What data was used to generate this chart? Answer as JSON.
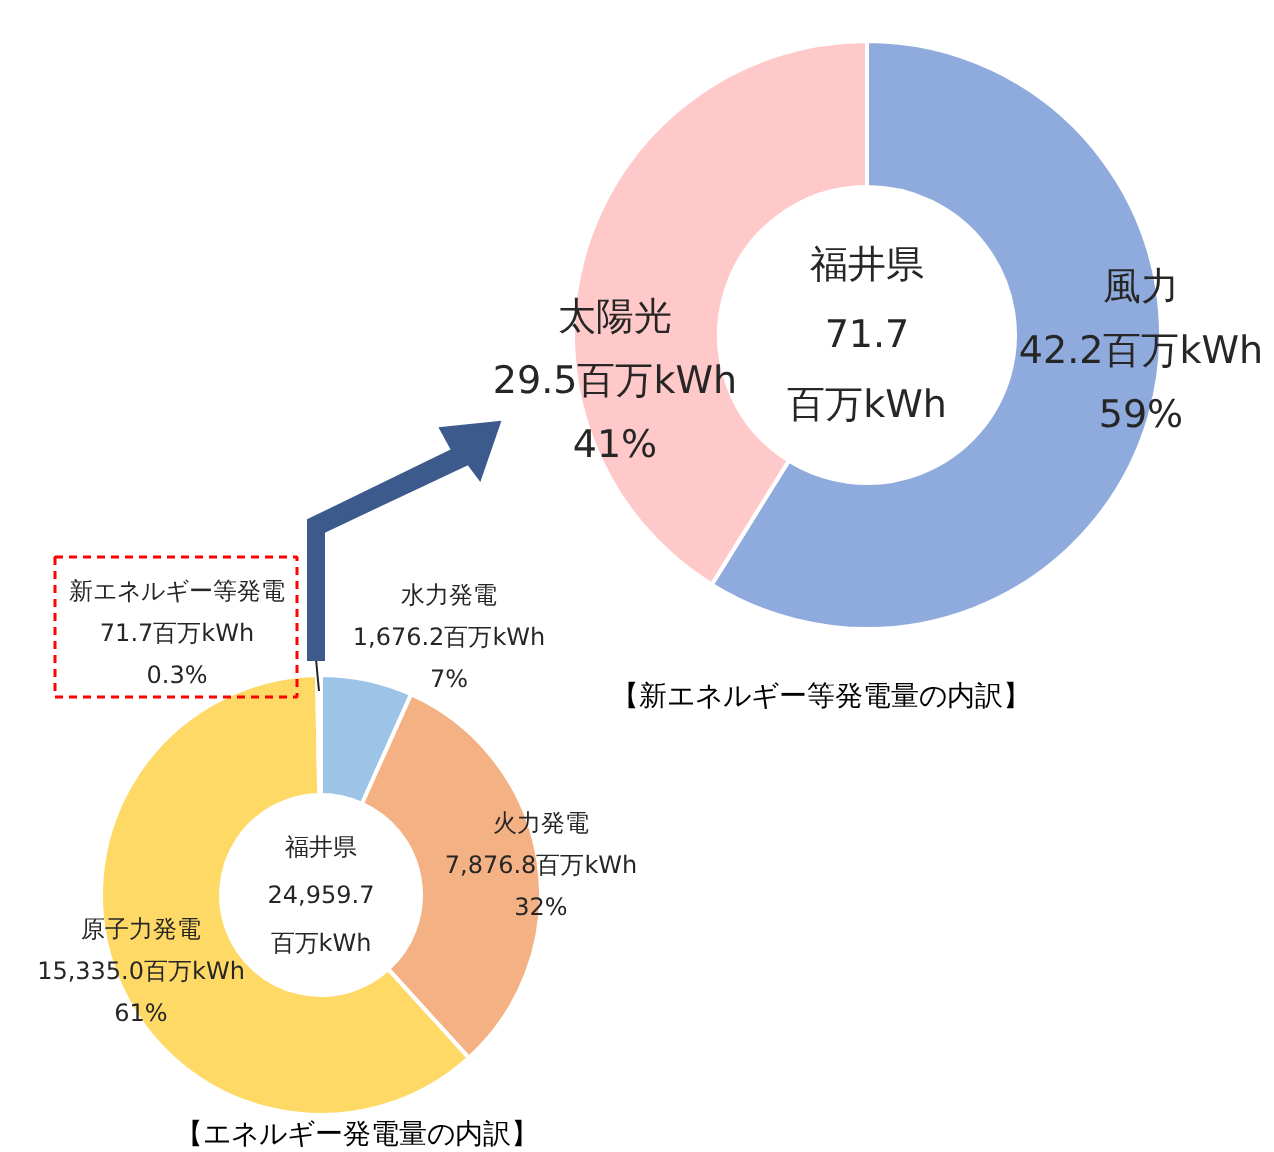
{
  "chart_data": [
    {
      "type": "donut",
      "title": "【新エネルギー等発電量の内訳】",
      "categories": [
        "風力",
        "太陽光"
      ],
      "values": [
        42.2,
        29.5
      ],
      "colors": [
        "#8faadc",
        "#ffc9c9"
      ],
      "value_labels": [
        "42.2百万kWh\n59%",
        "29.5百万kWh\n41%"
      ],
      "annotations": [
        "福井県\n71.7\n百万kWh"
      ]
    },
    {
      "type": "donut",
      "title": "【エネルギー発電量の内訳】",
      "categories": [
        "水力発電",
        "火力発電",
        "原子力発電",
        "新エネルギー等発電"
      ],
      "values": [
        1676.2,
        7876.8,
        15335.0,
        71.7
      ],
      "colors": [
        "#9dc3e6",
        "#f4b183",
        "#ffd966",
        "#c5e0b4"
      ],
      "value_labels": [
        "1,676.2百万kWh\n7%",
        "7,876.8百万kWh\n32%",
        "15,335.0百万kWh\n61%",
        "71.7百万kWh\n0.3%"
      ],
      "annotations": [
        "福井県\n24,959.7\n百万kWh"
      ]
    }
  ]
}
